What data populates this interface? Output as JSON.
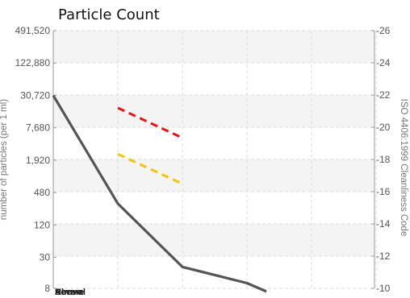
{
  "chart_data": {
    "type": "line",
    "title": "Particle Count",
    "ylabel": "number of particles (per 1 ml)",
    "y2label": "ISO 4406:1999 Cleanliness Code",
    "y_scale": "log2",
    "ylim": [
      8,
      491520
    ],
    "y_ticks": [
      "491,520",
      "122,880",
      "30,720",
      "7,680",
      "1,920",
      "480",
      "120",
      "30",
      "8"
    ],
    "y_tick_values": [
      491520,
      122880,
      30720,
      7680,
      1920,
      480,
      120,
      30,
      8
    ],
    "y2lim": [
      10,
      26
    ],
    "y2_ticks": [
      26,
      24,
      22,
      20,
      18,
      16,
      14,
      12,
      10
    ],
    "x_positions": 6,
    "grid": true,
    "legend_position": "bottom-left",
    "series": [
      {
        "color": "#555555",
        "dash": "solid",
        "points": [
          {
            "x": 0,
            "y": 30720
          },
          {
            "x": 1,
            "y": 300
          },
          {
            "x": 2,
            "y": 20
          },
          {
            "x": 3,
            "y": 10
          },
          {
            "x": 3.3,
            "y": 7
          }
        ]
      },
      {
        "color": "#ee1111",
        "dash": "dashed",
        "points": [
          {
            "x": 1,
            "y": 18000
          },
          {
            "x": 2,
            "y": 5000
          }
        ]
      },
      {
        "color": "#f5c400",
        "dash": "dashed",
        "points": [
          {
            "x": 1,
            "y": 2500
          },
          {
            "x": 2,
            "y": 700
          }
        ]
      }
    ],
    "legend_labels": [
      "Above",
      "Normal",
      "Severe"
    ]
  }
}
